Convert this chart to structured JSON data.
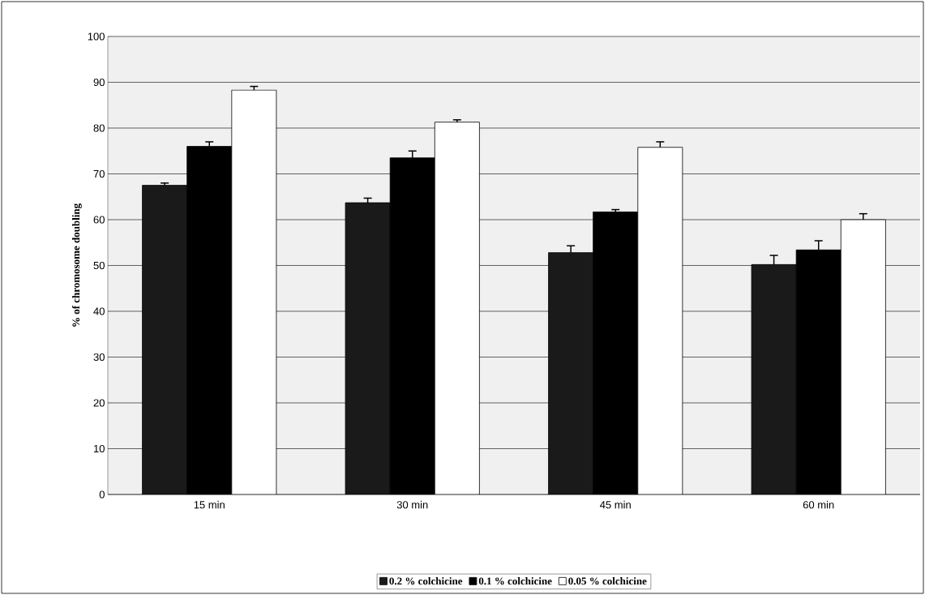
{
  "chart_data": {
    "type": "bar",
    "ylabel": "% of chromosome doubling",
    "categories": [
      "15 min",
      "30 min",
      "45 min",
      "60 min"
    ],
    "series": [
      {
        "name": "0.2 % colchicine",
        "color": "#1a1a1a",
        "values": [
          67.5,
          63.7,
          52.8,
          50.2
        ],
        "errors": [
          0.5,
          1,
          1.5,
          2
        ]
      },
      {
        "name": "0.1 % colchicine",
        "color": "#000000",
        "values": [
          76,
          73.5,
          61.7,
          53.4
        ],
        "errors": [
          1,
          1.5,
          0.5,
          2
        ]
      },
      {
        "name": "0.05 % colchicine",
        "color": "#ffffff",
        "values": [
          88.3,
          81.3,
          75.8,
          60.0
        ],
        "errors": [
          0.8,
          0.5,
          1.2,
          1.3
        ]
      }
    ],
    "ylim": [
      0,
      100
    ],
    "yticks": [
      0,
      10,
      20,
      30,
      40,
      50,
      60,
      70,
      80,
      90,
      100
    ],
    "grid": "y",
    "legend": "bottom"
  }
}
